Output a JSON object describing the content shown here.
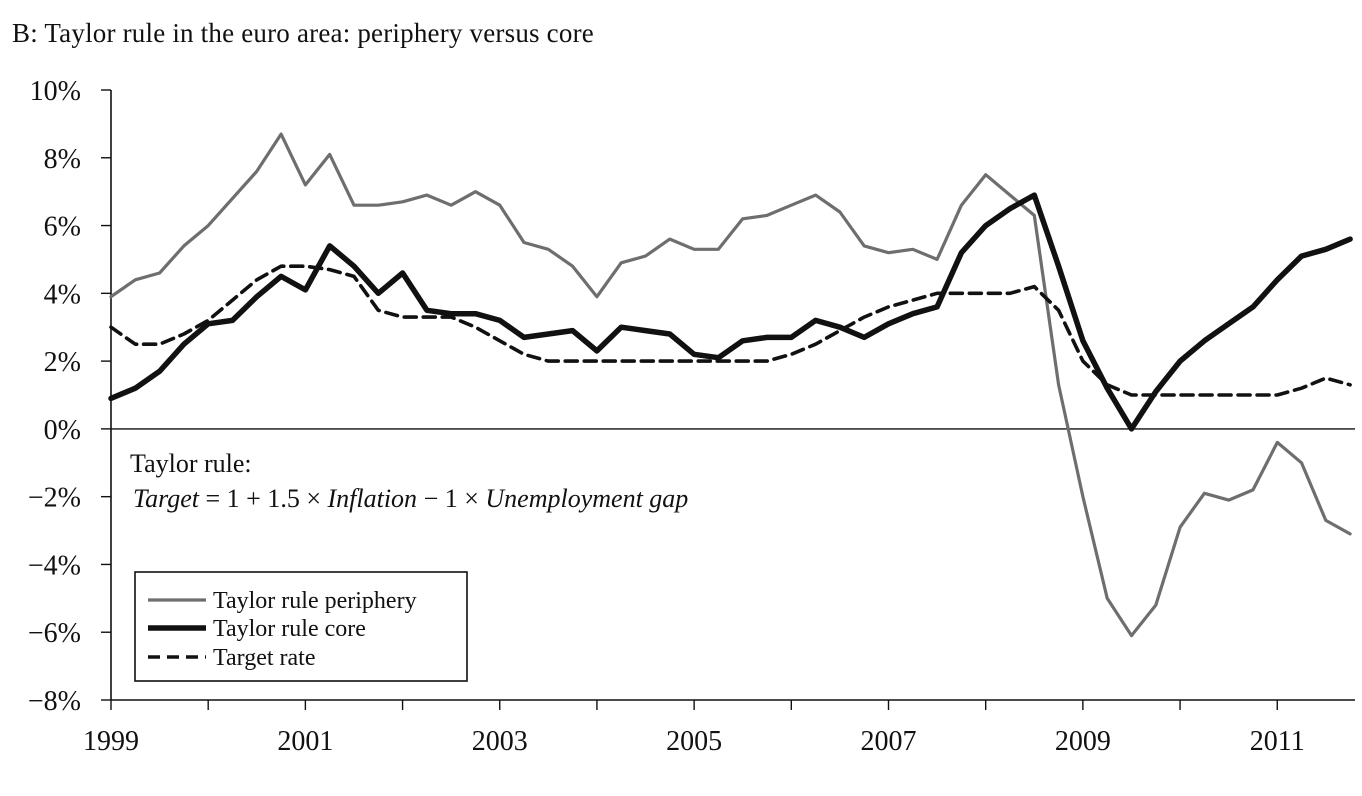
{
  "chart_data": {
    "type": "line",
    "title": "B: Taylor rule in the euro area: periphery versus core",
    "xlabel": "",
    "ylabel": "",
    "xlim": [
      1999.0,
      2011.8
    ],
    "ylim": [
      -8,
      10
    ],
    "xticks": [
      1999,
      2001,
      2003,
      2005,
      2007,
      2009,
      2011
    ],
    "yticks": [
      -8,
      -6,
      -4,
      -2,
      0,
      2,
      4,
      6,
      8,
      10
    ],
    "ytick_labels": [
      "−8%",
      "−6%",
      "−4%",
      "−2%",
      "0%",
      "2%",
      "4%",
      "6%",
      "8%",
      "10%"
    ],
    "grid": false,
    "legend_position": "bottom-left",
    "annotation": {
      "line1": "Taylor rule:",
      "line2_target": "Target",
      "line2_mid": " = 1 + 1.5 × ",
      "line2_inflation": "Inflation",
      "line2_mid2": " − 1 × ",
      "line2_gap": "Unemployment gap"
    },
    "x": [
      1999.0,
      1999.25,
      1999.5,
      1999.75,
      2000.0,
      2000.25,
      2000.5,
      2000.75,
      2001.0,
      2001.25,
      2001.5,
      2001.75,
      2002.0,
      2002.25,
      2002.5,
      2002.75,
      2003.0,
      2003.25,
      2003.5,
      2003.75,
      2004.0,
      2004.25,
      2004.5,
      2004.75,
      2005.0,
      2005.25,
      2005.5,
      2005.75,
      2006.0,
      2006.25,
      2006.5,
      2006.75,
      2007.0,
      2007.25,
      2007.5,
      2007.75,
      2008.0,
      2008.25,
      2008.5,
      2008.75,
      2009.0,
      2009.25,
      2009.5,
      2009.75,
      2010.0,
      2010.25,
      2010.5,
      2010.75,
      2011.0,
      2011.25,
      2011.5,
      2011.75
    ],
    "series": [
      {
        "name": "Taylor rule periphery",
        "color": "#6e6e6e",
        "style": "solid-thin",
        "values": [
          3.9,
          4.4,
          4.6,
          5.4,
          6.0,
          6.8,
          7.6,
          8.7,
          7.2,
          8.1,
          6.6,
          6.6,
          6.7,
          6.9,
          6.6,
          7.0,
          6.6,
          5.5,
          5.3,
          4.8,
          3.9,
          4.9,
          5.1,
          5.6,
          5.3,
          5.3,
          6.2,
          6.3,
          6.6,
          6.9,
          6.4,
          5.4,
          5.2,
          5.3,
          5.0,
          6.6,
          7.5,
          6.9,
          6.3,
          1.3,
          -2.0,
          -5.0,
          -6.1,
          -5.2,
          -2.9,
          -1.9,
          -2.1,
          -1.8,
          -0.4,
          -1.0,
          -2.7,
          -3.1
        ]
      },
      {
        "name": "Taylor rule core",
        "color": "#111111",
        "style": "solid-thick",
        "values": [
          0.9,
          1.2,
          1.7,
          2.5,
          3.1,
          3.2,
          3.9,
          4.5,
          4.1,
          5.4,
          4.8,
          4.0,
          4.6,
          3.5,
          3.4,
          3.4,
          3.2,
          2.7,
          2.8,
          2.9,
          2.3,
          3.0,
          2.9,
          2.8,
          2.2,
          2.1,
          2.6,
          2.7,
          2.7,
          3.2,
          3.0,
          2.7,
          3.1,
          3.4,
          3.6,
          5.2,
          6.0,
          6.5,
          6.9,
          4.8,
          2.6,
          1.2,
          0.0,
          1.1,
          2.0,
          2.6,
          3.1,
          3.6,
          4.4,
          5.1,
          5.3,
          5.6
        ]
      },
      {
        "name": "Target rate",
        "color": "#111111",
        "style": "dashed",
        "values": [
          3.0,
          2.5,
          2.5,
          2.8,
          3.2,
          3.8,
          4.4,
          4.8,
          4.8,
          4.7,
          4.5,
          3.5,
          3.3,
          3.3,
          3.3,
          3.0,
          2.6,
          2.2,
          2.0,
          2.0,
          2.0,
          2.0,
          2.0,
          2.0,
          2.0,
          2.0,
          2.0,
          2.0,
          2.2,
          2.5,
          2.9,
          3.3,
          3.6,
          3.8,
          4.0,
          4.0,
          4.0,
          4.0,
          4.2,
          3.5,
          2.0,
          1.3,
          1.0,
          1.0,
          1.0,
          1.0,
          1.0,
          1.0,
          1.0,
          1.2,
          1.5,
          1.3
        ]
      }
    ]
  }
}
